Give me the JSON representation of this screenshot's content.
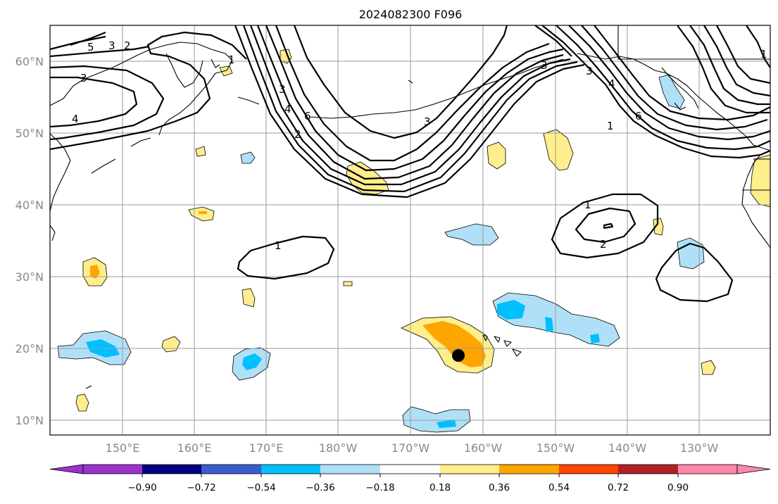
{
  "title": "2024082300 F096",
  "lat_labels": [
    "60°N",
    "50°N",
    "40°N",
    "30°N",
    "20°N",
    "10°N"
  ],
  "lon_labels": [
    "150°E",
    "160°E",
    "170°E",
    "180°W",
    "170°W",
    "160°W",
    "150°W",
    "140°W",
    "130°W"
  ],
  "contour_labels": [
    "5",
    "3",
    "2",
    "3",
    "4",
    "2",
    "3",
    "4",
    "6",
    "3",
    "1",
    "3",
    "3",
    "4",
    "6",
    "1",
    "1",
    "1",
    "2",
    "1"
  ],
  "colorbar": {
    "ticks": [
      "−0.90",
      "−0.72",
      "−0.54",
      "−0.36",
      "−0.18",
      "0.18",
      "0.36",
      "0.54",
      "0.72",
      "0.90"
    ],
    "colors": [
      "#9933cc",
      "#000080",
      "#3a5ccf",
      "#00bfff",
      "#b0e0f8",
      "#ffffff",
      "#ffee8c",
      "#ffa500",
      "#ff4500",
      "#b22222",
      "#ff88aa"
    ]
  },
  "marker": "storm-center-dot"
}
